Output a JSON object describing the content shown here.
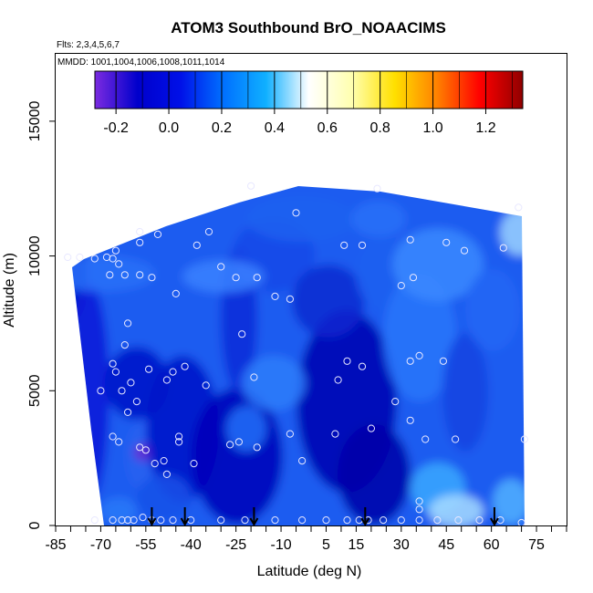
{
  "chart_data": {
    "type": "heatmap",
    "title": "ATOM3 Southbound BrO_NOAACIMS",
    "subtitle_flights": "Flts: 2,3,4,5,6,7",
    "subtitle_dates": "MMDD: 1001,1004,1006,1008,1011,1014",
    "xlabel": "Latitude (deg N)",
    "ylabel": "Altitude (m)",
    "xlim": [
      -85,
      85
    ],
    "ylim": [
      0,
      17500
    ],
    "x_tick_labels": [
      "-85",
      "-70",
      "-55",
      "-40",
      "-25",
      "-10",
      "5",
      "15",
      "30",
      "45",
      "60",
      "75"
    ],
    "x_tick_values": [
      -85,
      -70,
      -55,
      -40,
      -25,
      -10,
      5,
      15,
      30,
      45,
      60,
      75
    ],
    "y_tick_labels": [
      "0",
      "5000",
      "10000",
      "15000"
    ],
    "y_tick_values": [
      0,
      5000,
      10000,
      15000
    ],
    "colorbar": {
      "range": [
        -0.28,
        1.34
      ],
      "tick_labels": [
        "-0.2",
        "0.0",
        "0.2",
        "0.4",
        "0.6",
        "0.8",
        "1.0",
        "1.2"
      ],
      "tick_values": [
        -0.2,
        0.0,
        0.2,
        0.4,
        0.6,
        0.8,
        1.0,
        1.2
      ],
      "colors": [
        "#7B2BE0",
        "#0000CC",
        "#0010E8",
        "#0070FF",
        "#10B0FF",
        "#FFFFFF",
        "#FFFFB0",
        "#FFE000",
        "#FF8000",
        "#FF0000",
        "#900000"
      ]
    },
    "marker_latitudes": [
      -53,
      -42,
      -19,
      18,
      61
    ],
    "observations": [
      [
        -81,
        9950
      ],
      [
        -77,
        9950
      ],
      [
        -72,
        9900
      ],
      [
        -68,
        9950
      ],
      [
        -66,
        9900
      ],
      [
        -64,
        9700
      ],
      [
        -67,
        9300
      ],
      [
        -62,
        9300
      ],
      [
        -57,
        9300
      ],
      [
        -53,
        9200
      ],
      [
        -45,
        8600
      ],
      [
        -38,
        10400
      ],
      [
        -34,
        10900
      ],
      [
        -57,
        10900
      ],
      [
        -51,
        10800
      ],
      [
        -65,
        10200
      ],
      [
        -57,
        10500
      ],
      [
        -20,
        12600
      ],
      [
        -5,
        11600
      ],
      [
        -18,
        9200
      ],
      [
        -25,
        9200
      ],
      [
        -30,
        9600
      ],
      [
        -12,
        8500
      ],
      [
        -7,
        8400
      ],
      [
        -23,
        7100
      ],
      [
        11,
        10400
      ],
      [
        17,
        10400
      ],
      [
        33,
        10600
      ],
      [
        45,
        10500
      ],
      [
        51,
        10200
      ],
      [
        64,
        10300
      ],
      [
        69,
        11800
      ],
      [
        22,
        12500
      ],
      [
        34,
        9200
      ],
      [
        30,
        8900
      ],
      [
        33,
        6100
      ],
      [
        36,
        6300
      ],
      [
        44,
        6100
      ],
      [
        -61,
        7500
      ],
      [
        -62,
        6700
      ],
      [
        -66,
        6000
      ],
      [
        -65,
        5700
      ],
      [
        -70,
        5000
      ],
      [
        -63,
        5000
      ],
      [
        -60,
        5300
      ],
      [
        -58,
        4600
      ],
      [
        -54,
        5800
      ],
      [
        -48,
        5400
      ],
      [
        -46,
        5700
      ],
      [
        -42,
        5900
      ],
      [
        -35,
        5200
      ],
      [
        -19,
        5500
      ],
      [
        9,
        5400
      ],
      [
        12,
        6100
      ],
      [
        17,
        5900
      ],
      [
        28,
        4600
      ],
      [
        33,
        3900
      ],
      [
        -61,
        4200
      ],
      [
        -66,
        3300
      ],
      [
        -64,
        3100
      ],
      [
        -57,
        2900
      ],
      [
        -55,
        2800
      ],
      [
        -44,
        3100
      ],
      [
        -44,
        3300
      ],
      [
        -27,
        3000
      ],
      [
        -24,
        3100
      ],
      [
        -18,
        2900
      ],
      [
        -7,
        3400
      ],
      [
        -3,
        2400
      ],
      [
        8,
        3400
      ],
      [
        20,
        3600
      ],
      [
        38,
        3200
      ],
      [
        48,
        3200
      ],
      [
        -52,
        2300
      ],
      [
        -49,
        2400
      ],
      [
        -48,
        1900
      ],
      [
        -39,
        2300
      ],
      [
        36,
        900
      ],
      [
        36,
        600
      ],
      [
        -72,
        200
      ],
      [
        -66,
        200
      ],
      [
        -63,
        200
      ],
      [
        -61,
        200
      ],
      [
        -59,
        200
      ],
      [
        -56,
        300
      ],
      [
        -53,
        200
      ],
      [
        -50,
        200
      ],
      [
        -46,
        200
      ],
      [
        -40,
        200
      ],
      [
        -30,
        200
      ],
      [
        -22,
        200
      ],
      [
        -12,
        200
      ],
      [
        -3,
        200
      ],
      [
        5,
        200
      ],
      [
        12,
        200
      ],
      [
        16,
        200
      ],
      [
        19,
        200
      ],
      [
        24,
        200
      ],
      [
        30,
        200
      ],
      [
        36,
        200
      ],
      [
        42,
        200
      ],
      [
        49,
        200
      ],
      [
        56,
        200
      ],
      [
        63,
        200
      ],
      [
        70,
        100
      ],
      [
        71,
        3200
      ]
    ]
  }
}
